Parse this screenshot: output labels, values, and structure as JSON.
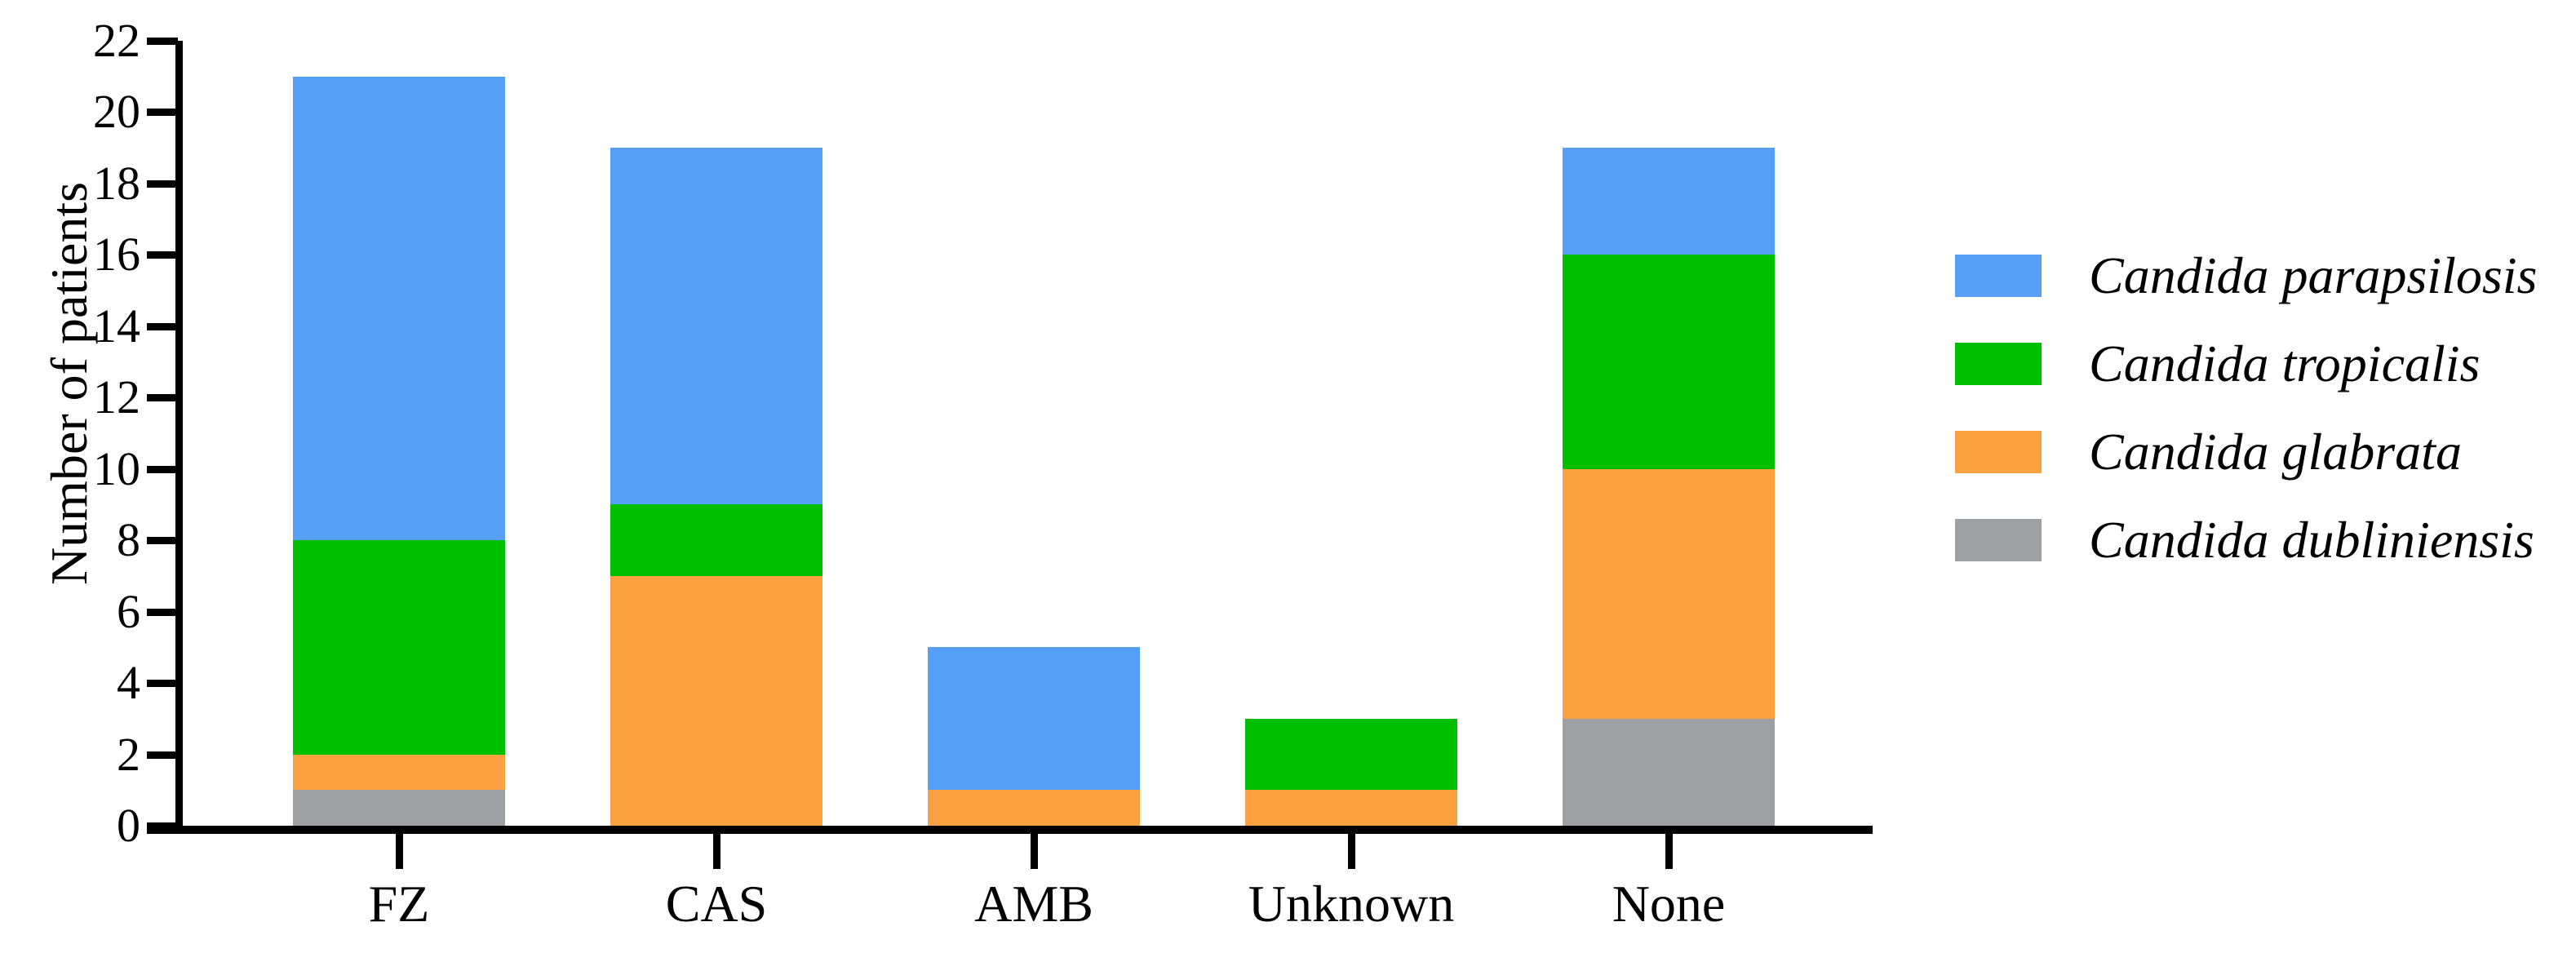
{
  "figure": {
    "background": "#ffffff",
    "axis_color": "#000000"
  },
  "chart_data": {
    "type": "bar",
    "stacked": true,
    "title": "",
    "xlabel": "",
    "ylabel": "Number of patients",
    "ylim": [
      0,
      22
    ],
    "yticks": [
      0,
      2,
      4,
      6,
      8,
      10,
      12,
      14,
      16,
      18,
      20,
      22
    ],
    "categories": [
      "FZ",
      "CAS",
      "AMB",
      "Unknown",
      "None"
    ],
    "series": [
      {
        "name": "Candida parapsilosis",
        "color": "#559FF7",
        "values": [
          13,
          10,
          4,
          0,
          3
        ]
      },
      {
        "name": "Candida tropicalis",
        "color": "#00BE00",
        "values": [
          6,
          2,
          0,
          2,
          6
        ]
      },
      {
        "name": "Candida glabrata",
        "color": "#FCA142",
        "values": [
          1,
          7,
          1,
          1,
          7
        ]
      },
      {
        "name": "Candida dubliniensis",
        "color": "#9FA0A4",
        "values": [
          1,
          0,
          0,
          0,
          3
        ]
      }
    ],
    "stack_order": "reverse_of_legend",
    "category_totals": [
      21,
      19,
      5,
      3,
      19
    ],
    "legend_position": "right",
    "grid": false
  }
}
